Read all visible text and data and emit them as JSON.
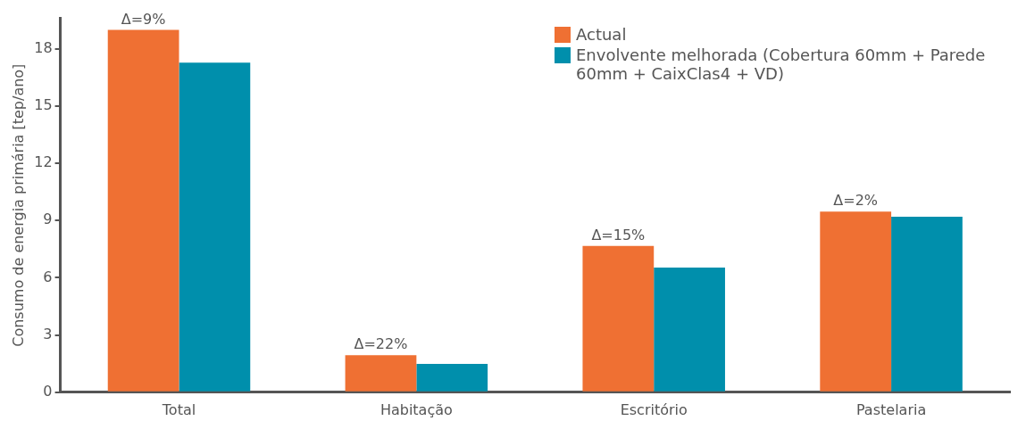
{
  "chart_data": {
    "type": "bar",
    "ylabel": "Consumo de energia primária [tep/ano]",
    "categories": [
      "Total",
      "Habitação",
      "Escritório",
      "Pastelaria"
    ],
    "series": [
      {
        "name": "Actual",
        "color": "#ef7033",
        "values": [
          19.0,
          1.94,
          7.67,
          9.47
        ]
      },
      {
        "name": "Envolvente melhorada (Cobertura 60mm + Parede 60mm + CaixClas4 + VD)",
        "color": "#008fac",
        "values": [
          17.28,
          1.49,
          6.54,
          9.2
        ]
      }
    ],
    "ylim": [
      0,
      19.6
    ],
    "yticks": [
      0,
      3,
      6,
      9,
      12,
      15,
      18
    ],
    "grid": false,
    "legend": "top right",
    "annotations": [
      {
        "text": "Δ=9%",
        "x": "Total",
        "y": 19.0
      },
      {
        "text": "Δ=22%",
        "x": "Habitação",
        "y": 1.94
      },
      {
        "text": "Δ=15%",
        "x": "Escritório",
        "y": 7.67
      },
      {
        "text": "Δ=2%",
        "x": "Pastelaria",
        "y": 9.47
      }
    ]
  }
}
